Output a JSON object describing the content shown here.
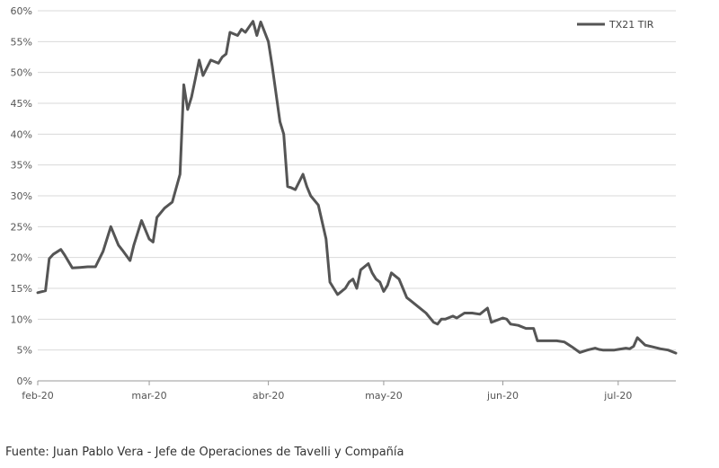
{
  "chart_data": {
    "type": "line",
    "title": "",
    "xlabel": "",
    "ylabel": "",
    "ylim": [
      0,
      60
    ],
    "y_ticks": [
      "0%",
      "5%",
      "10%",
      "15%",
      "20%",
      "25%",
      "30%",
      "35%",
      "40%",
      "45%",
      "50%",
      "55%",
      "60%"
    ],
    "y_tick_values": [
      0,
      5,
      10,
      15,
      20,
      25,
      30,
      35,
      40,
      45,
      50,
      55,
      60
    ],
    "x_ticks": [
      "feb-20",
      "mar-20",
      "abr-20",
      "may-20",
      "jun-20",
      "jul-20"
    ],
    "x_tick_values": [
      "2020-02-01",
      "2020-03-01",
      "2020-04-01",
      "2020-05-01",
      "2020-06-01",
      "2020-07-01"
    ],
    "xlim": [
      "2020-02-01",
      "2020-07-16"
    ],
    "grid": true,
    "legend_position": "top-right",
    "series": [
      {
        "name": "TX21 TIR",
        "color": "#555555",
        "x": [
          "2020-02-01",
          "2020-02-03",
          "2020-02-04",
          "2020-02-05",
          "2020-02-07",
          "2020-02-08",
          "2020-02-10",
          "2020-02-12",
          "2020-02-14",
          "2020-02-16",
          "2020-02-18",
          "2020-02-20",
          "2020-02-22",
          "2020-02-23",
          "2020-02-25",
          "2020-02-26",
          "2020-02-28",
          "2020-03-01",
          "2020-03-02",
          "2020-03-03",
          "2020-03-05",
          "2020-03-07",
          "2020-03-09",
          "2020-03-10",
          "2020-03-11",
          "2020-03-12",
          "2020-03-13",
          "2020-03-14",
          "2020-03-15",
          "2020-03-17",
          "2020-03-19",
          "2020-03-20",
          "2020-03-21",
          "2020-03-22",
          "2020-03-24",
          "2020-03-25",
          "2020-03-26",
          "2020-03-28",
          "2020-03-29",
          "2020-03-30",
          "2020-04-01",
          "2020-04-02",
          "2020-04-04",
          "2020-04-05",
          "2020-04-06",
          "2020-04-07",
          "2020-04-08",
          "2020-04-10",
          "2020-04-11",
          "2020-04-12",
          "2020-04-14",
          "2020-04-16",
          "2020-04-17",
          "2020-04-19",
          "2020-04-21",
          "2020-04-22",
          "2020-04-23",
          "2020-04-24",
          "2020-04-25",
          "2020-04-27",
          "2020-04-28",
          "2020-04-29",
          "2020-04-30",
          "2020-05-01",
          "2020-05-02",
          "2020-05-03",
          "2020-05-04",
          "2020-05-05",
          "2020-05-06",
          "2020-05-07",
          "2020-05-08",
          "2020-05-10",
          "2020-05-12",
          "2020-05-14",
          "2020-05-15",
          "2020-05-16",
          "2020-05-17",
          "2020-05-19",
          "2020-05-20",
          "2020-05-22",
          "2020-05-24",
          "2020-05-26",
          "2020-05-28",
          "2020-05-29",
          "2020-06-01",
          "2020-06-02",
          "2020-06-03",
          "2020-06-05",
          "2020-06-07",
          "2020-06-09",
          "2020-06-10",
          "2020-06-13",
          "2020-06-15",
          "2020-06-17",
          "2020-06-19",
          "2020-06-21",
          "2020-06-23",
          "2020-06-25",
          "2020-06-26",
          "2020-06-27",
          "2020-06-29",
          "2020-06-30",
          "2020-07-01",
          "2020-07-03",
          "2020-07-04",
          "2020-07-05",
          "2020-07-06",
          "2020-07-08",
          "2020-07-10",
          "2020-07-12",
          "2020-07-14",
          "2020-07-16"
        ],
        "values": [
          14.3,
          14.6,
          19.8,
          20.5,
          21.3,
          20.4,
          18.3,
          18.4,
          18.5,
          18.5,
          21.0,
          25.0,
          22.0,
          21.2,
          19.5,
          22.0,
          26.0,
          23.0,
          22.5,
          26.5,
          28.0,
          29.0,
          33.5,
          48.0,
          44.0,
          46.0,
          49.0,
          52.0,
          49.5,
          52.0,
          51.5,
          52.5,
          53.0,
          56.5,
          56.0,
          57.0,
          56.5,
          58.3,
          56.0,
          58.2,
          55.0,
          51.0,
          42.0,
          40.0,
          31.5,
          31.3,
          31.0,
          33.5,
          31.5,
          30.0,
          28.5,
          23.0,
          16.0,
          14.0,
          15.0,
          16.0,
          16.5,
          15.0,
          18.0,
          19.0,
          17.5,
          16.5,
          16.0,
          14.5,
          15.5,
          17.5,
          17.0,
          16.5,
          15.0,
          13.5,
          13.0,
          12.0,
          11.0,
          9.5,
          9.2,
          10.0,
          10.0,
          10.5,
          10.2,
          11.0,
          11.0,
          10.8,
          11.8,
          9.5,
          10.2,
          10.0,
          9.2,
          9.0,
          8.5,
          8.5,
          6.5,
          6.5,
          6.5,
          6.3,
          5.5,
          4.6,
          5.0,
          5.3,
          5.1,
          5.0,
          5.0,
          5.0,
          5.1,
          5.3,
          5.2,
          5.6,
          7.0,
          5.8,
          5.5,
          5.2,
          5.0,
          4.5
        ]
      }
    ]
  },
  "legend": {
    "label": "TX21 TIR",
    "color": "#555555"
  },
  "footer": {
    "source": "Fuente: Juan Pablo Vera - Jefe de Operaciones de Tavelli y Compañía"
  }
}
